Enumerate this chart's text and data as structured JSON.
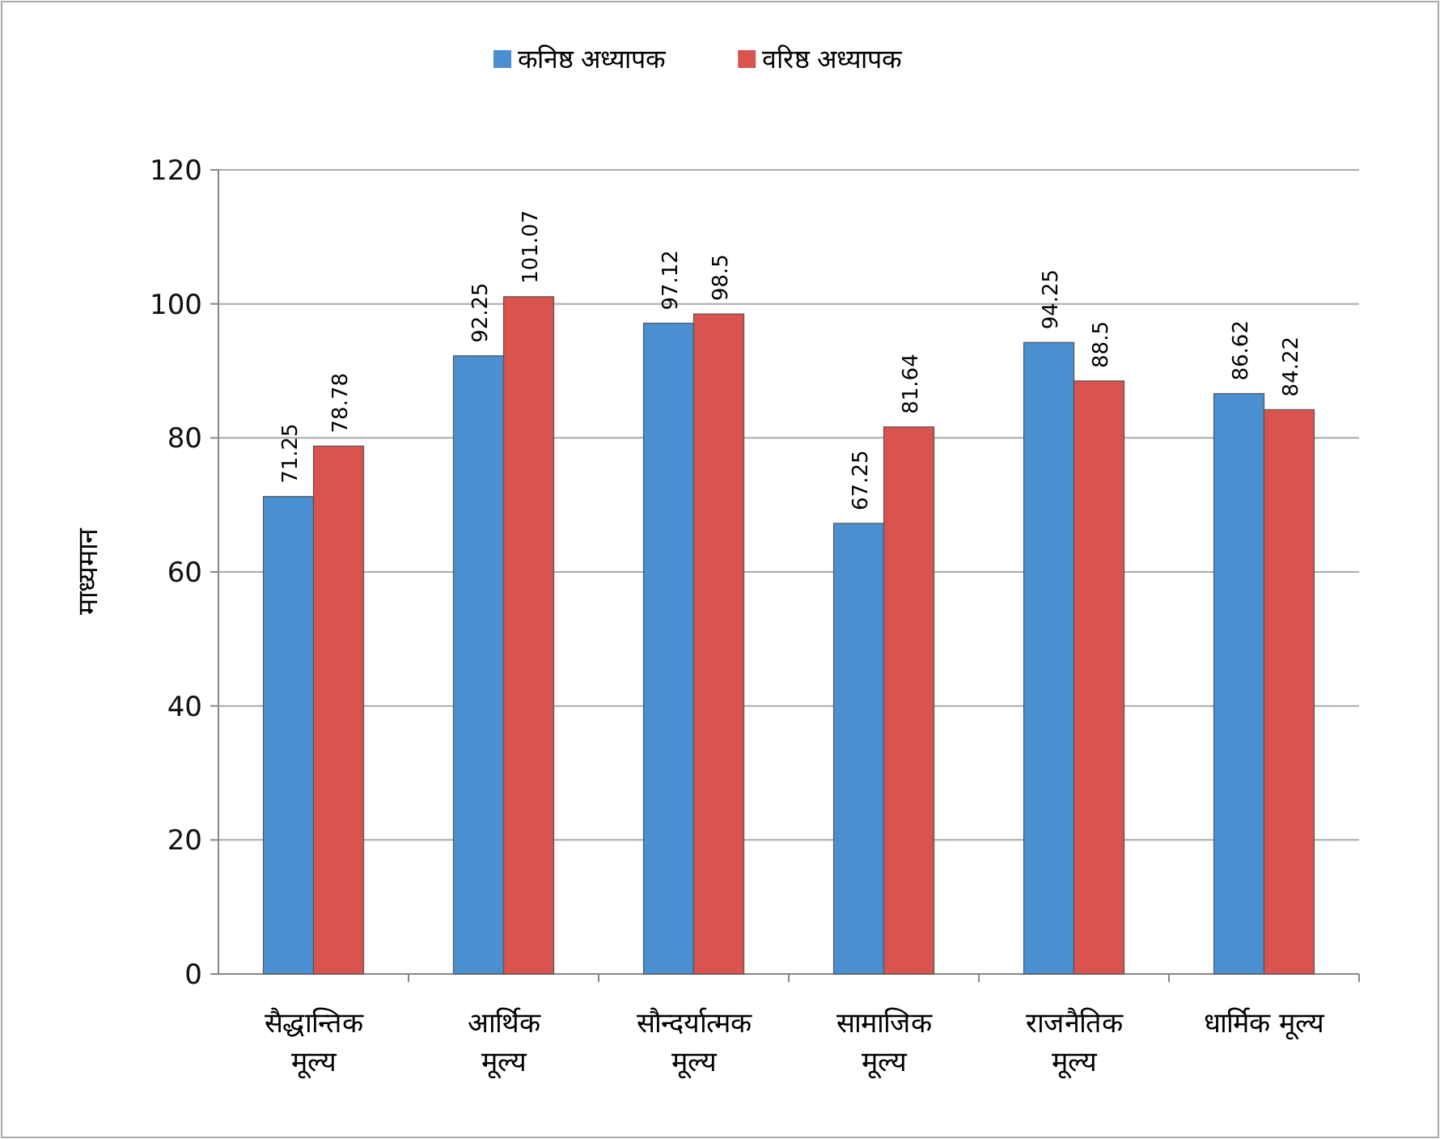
{
  "chart_data": {
    "type": "bar",
    "ylabel": "माध्यमान",
    "categories": [
      "सैद्धान्तिक\nमूल्य",
      "आर्थिक\nमूल्य",
      "सौन्दर्यात्मक\nमूल्य",
      "सामाजिक\nमूल्य",
      "राजनैतिक\nमूल्य",
      "धार्मिक मूल्य"
    ],
    "series": [
      {
        "name": "कनिष्ठ अध्यापक",
        "color": "#4a8fd0",
        "values": [
          71.25,
          92.25,
          97.12,
          67.25,
          94.25,
          86.62
        ]
      },
      {
        "name": "वरिष्ठ अध्यापक",
        "color": "#d9534f",
        "values": [
          78.78,
          101.07,
          98.5,
          81.64,
          88.5,
          84.22
        ]
      }
    ],
    "ylim": [
      0,
      120
    ],
    "yticks": [
      0,
      20,
      40,
      60,
      80,
      100,
      120
    ],
    "grid": "y",
    "legend": "top",
    "data_labels": true
  }
}
